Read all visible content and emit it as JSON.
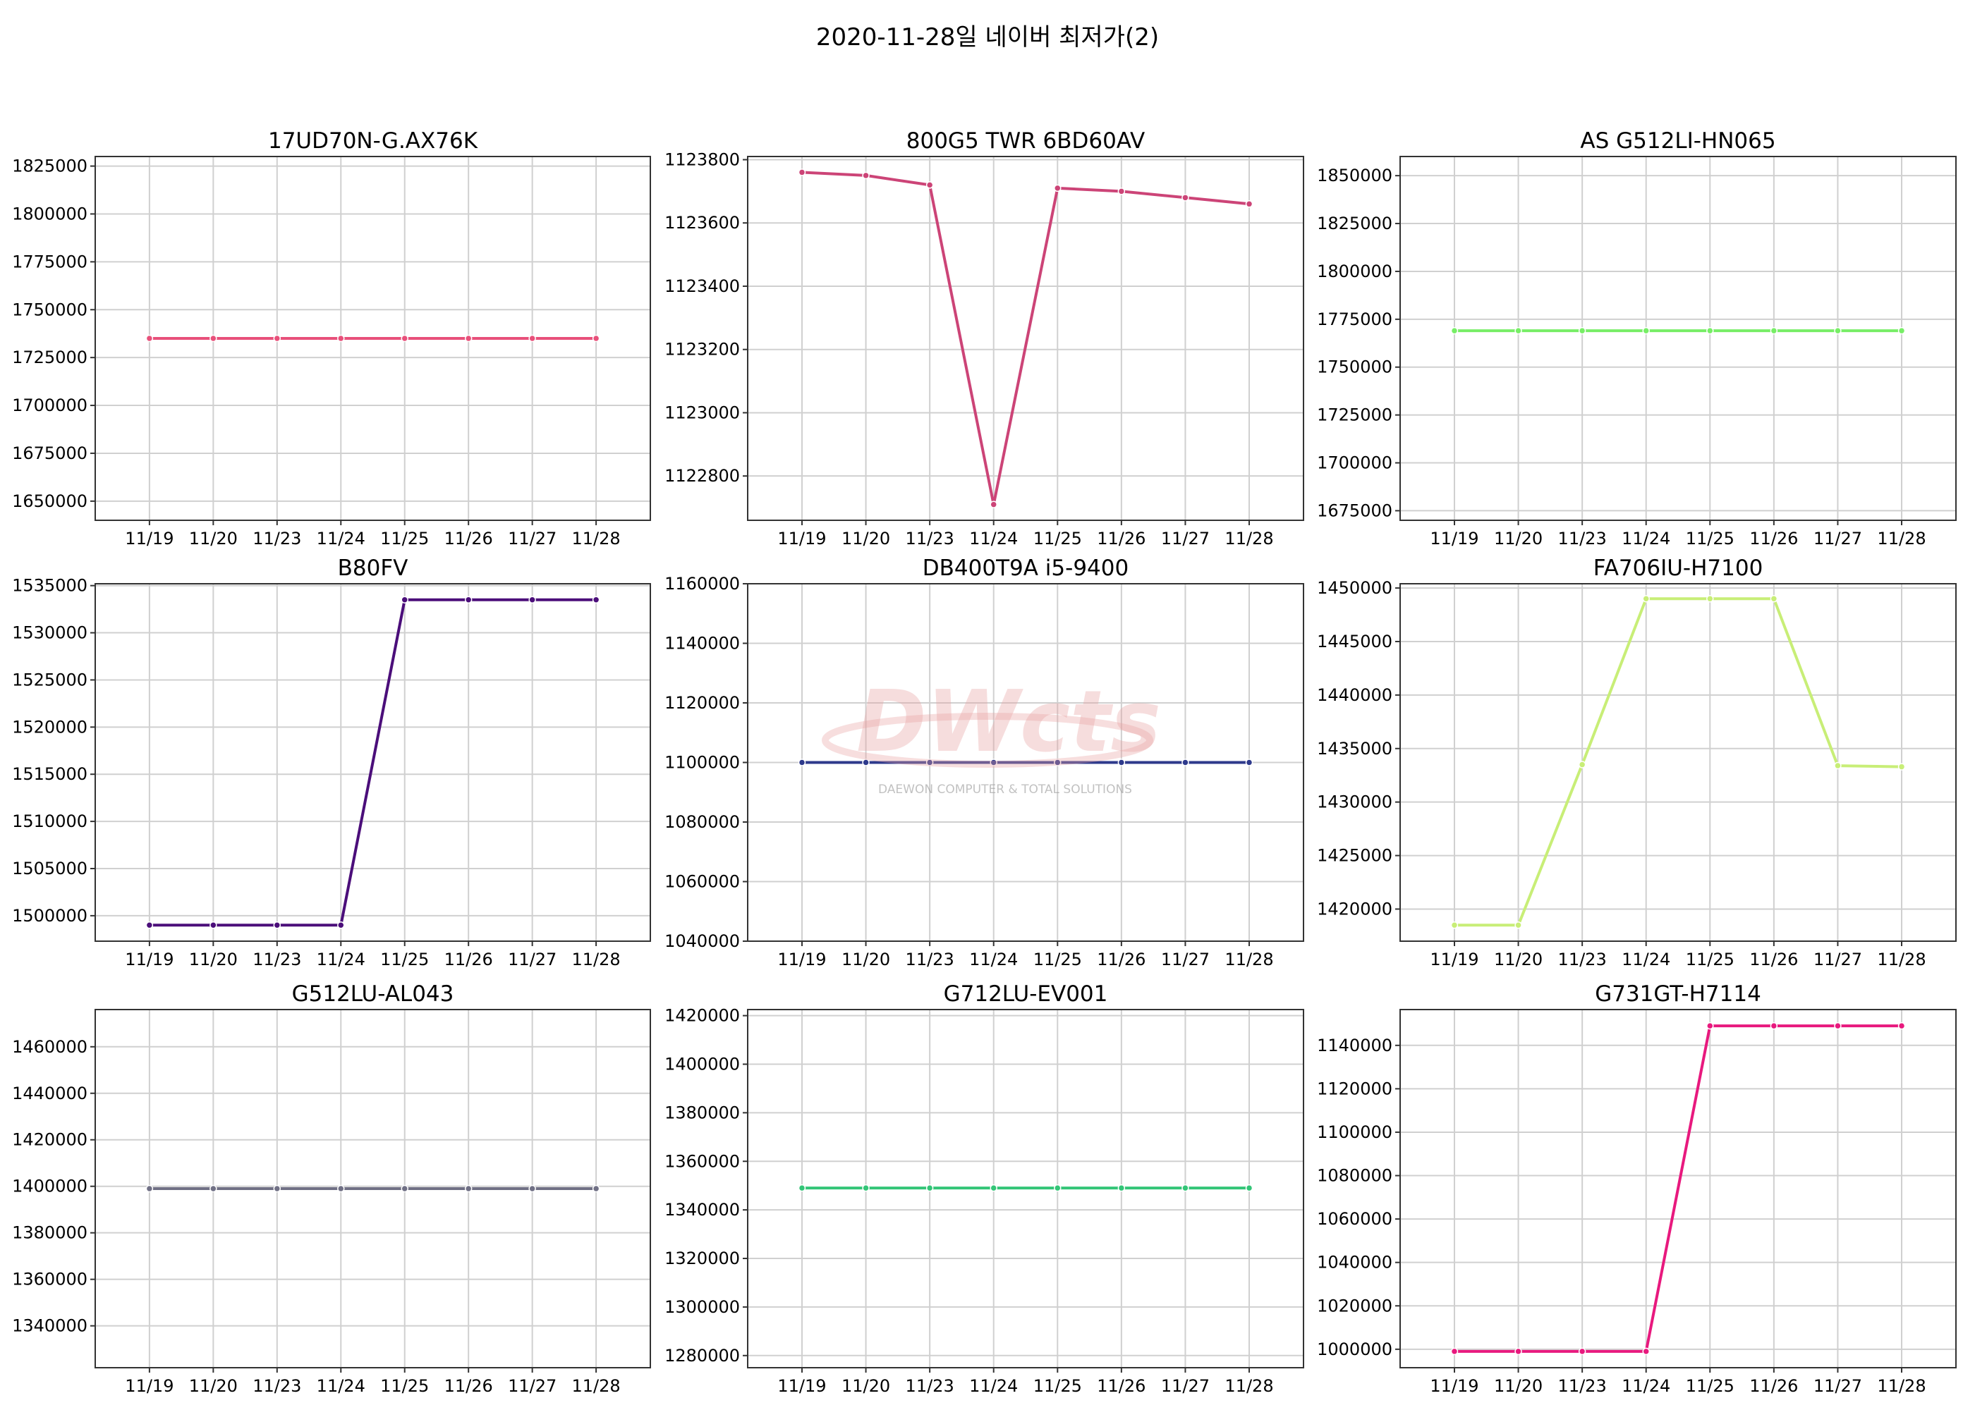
{
  "suptitle": "2020-11-28일 네이버 최저가(2)",
  "watermark": {
    "logo": "DWcts",
    "subtitle": "DAEWON COMPUTER & TOTAL SOLUTIONS"
  },
  "chart_data": [
    {
      "type": "line",
      "title": "17UD70N-G.AX76K",
      "categories": [
        "11/19",
        "11/20",
        "11/23",
        "11/24",
        "11/25",
        "11/26",
        "11/27",
        "11/28"
      ],
      "values": [
        1735000,
        1735000,
        1735000,
        1735000,
        1735000,
        1735000,
        1735000,
        1735000
      ],
      "ylim": [
        1640000,
        1830000
      ],
      "yticks": [
        1650000,
        1675000,
        1700000,
        1725000,
        1750000,
        1775000,
        1800000,
        1825000
      ],
      "color": "#e8507a"
    },
    {
      "type": "line",
      "title": "800G5 TWR 6BD60AV",
      "categories": [
        "11/19",
        "11/20",
        "11/23",
        "11/24",
        "11/25",
        "11/26",
        "11/27",
        "11/28"
      ],
      "values": [
        1123760,
        1123750,
        1123720,
        1122710,
        1123710,
        1123700,
        1123680,
        1123660
      ],
      "ylim": [
        1122660,
        1123810
      ],
      "yticks": [
        1122800,
        1123000,
        1123200,
        1123400,
        1123600,
        1123800
      ],
      "color": "#cc4477"
    },
    {
      "type": "line",
      "title": "AS G512LI-HN065",
      "categories": [
        "11/19",
        "11/20",
        "11/23",
        "11/24",
        "11/25",
        "11/26",
        "11/27",
        "11/28"
      ],
      "values": [
        1769000,
        1769000,
        1769000,
        1769000,
        1769000,
        1769000,
        1769000,
        1769000
      ],
      "ylim": [
        1670000,
        1860000
      ],
      "yticks": [
        1675000,
        1700000,
        1725000,
        1750000,
        1775000,
        1800000,
        1825000,
        1850000
      ],
      "color": "#77ee66"
    },
    {
      "type": "line",
      "title": "B80FV",
      "categories": [
        "11/19",
        "11/20",
        "11/23",
        "11/24",
        "11/25",
        "11/26",
        "11/27",
        "11/28"
      ],
      "values": [
        1499000,
        1499000,
        1499000,
        1499000,
        1533500,
        1533500,
        1533500,
        1533500
      ],
      "ylim": [
        1497300,
        1535200
      ],
      "yticks": [
        1500000,
        1505000,
        1510000,
        1515000,
        1520000,
        1525000,
        1530000,
        1535000
      ],
      "color": "#4b0e7a"
    },
    {
      "type": "line",
      "title": "DB400T9A i5-9400",
      "categories": [
        "11/19",
        "11/20",
        "11/23",
        "11/24",
        "11/25",
        "11/26",
        "11/27",
        "11/28"
      ],
      "values": [
        1100000,
        1100000,
        1100000,
        1100000,
        1100000,
        1100000,
        1100000,
        1100000
      ],
      "ylim": [
        1040000,
        1160000
      ],
      "yticks": [
        1040000,
        1060000,
        1080000,
        1100000,
        1120000,
        1140000,
        1160000
      ],
      "color": "#2e3a8c"
    },
    {
      "type": "line",
      "title": "FA706IU-H7100",
      "categories": [
        "11/19",
        "11/20",
        "11/23",
        "11/24",
        "11/25",
        "11/26",
        "11/27",
        "11/28"
      ],
      "values": [
        1418500,
        1418500,
        1433500,
        1449000,
        1449000,
        1449000,
        1433400,
        1433300
      ],
      "ylim": [
        1417000,
        1450400
      ],
      "yticks": [
        1420000,
        1425000,
        1430000,
        1435000,
        1440000,
        1445000,
        1450000
      ],
      "color": "#c8ee77"
    },
    {
      "type": "line",
      "title": "G512LU-AL043",
      "categories": [
        "11/19",
        "11/20",
        "11/23",
        "11/24",
        "11/25",
        "11/26",
        "11/27",
        "11/28"
      ],
      "values": [
        1399000,
        1399000,
        1399000,
        1399000,
        1399000,
        1399000,
        1399000,
        1399000
      ],
      "ylim": [
        1322000,
        1476000
      ],
      "yticks": [
        1340000,
        1360000,
        1380000,
        1400000,
        1420000,
        1440000,
        1460000
      ],
      "color": "#707085"
    },
    {
      "type": "line",
      "title": "G712LU-EV001",
      "categories": [
        "11/19",
        "11/20",
        "11/23",
        "11/24",
        "11/25",
        "11/26",
        "11/27",
        "11/28"
      ],
      "values": [
        1349000,
        1349000,
        1349000,
        1349000,
        1349000,
        1349000,
        1349000,
        1349000
      ],
      "ylim": [
        1275000,
        1422500
      ],
      "yticks": [
        1280000,
        1300000,
        1320000,
        1340000,
        1360000,
        1380000,
        1400000,
        1420000
      ],
      "color": "#33c577"
    },
    {
      "type": "line",
      "title": "G731GT-H7114",
      "categories": [
        "11/19",
        "11/20",
        "11/23",
        "11/24",
        "11/25",
        "11/26",
        "11/27",
        "11/28"
      ],
      "values": [
        999000,
        999000,
        999000,
        999000,
        1149000,
        1149000,
        1149000,
        1149000
      ],
      "ylim": [
        991500,
        1156500
      ],
      "yticks": [
        1000000,
        1020000,
        1040000,
        1060000,
        1080000,
        1100000,
        1120000,
        1140000
      ],
      "color": "#e8197e"
    }
  ]
}
